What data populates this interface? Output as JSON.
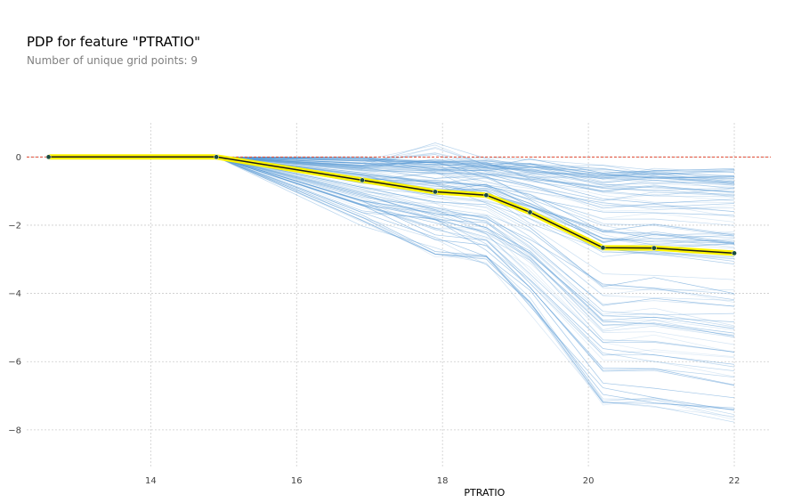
{
  "title": "PDP for feature \"PTRATIO\"",
  "subtitle": "Number of unique grid points: 9",
  "chart_data": {
    "type": "line",
    "title": "PDP for feature \"PTRATIO\"",
    "subtitle": "Number of unique grid points: 9",
    "xlabel": "PTRATIO",
    "ylabel": "",
    "xlim": [
      12.3,
      22.5
    ],
    "ylim": [
      -9.1,
      1.0
    ],
    "xticks": [
      14,
      16,
      18,
      20,
      22
    ],
    "yticks": [
      0,
      -2,
      -4,
      -6,
      -8
    ],
    "xtick_labels": [
      "14",
      "16",
      "18",
      "20",
      "22"
    ],
    "ytick_labels": [
      "0",
      "−2",
      "−4",
      "−6",
      "−8"
    ],
    "grid": true,
    "reference_line": 0,
    "series": [
      {
        "x": [
          12.6,
          14.9,
          16.9,
          17.9,
          18.6,
          19.2,
          20.2,
          20.9,
          22.0
        ],
        "values": [
          0.0,
          0.0,
          -0.68,
          -1.02,
          -1.12,
          -1.62,
          -2.66,
          -2.67,
          -2.82
        ]
      }
    ],
    "ice_lines_count": 120,
    "colors": {
      "pdp_line": "#1a1a1a",
      "pdp_band": "#fef400",
      "pdp_marker": "#1a4b3d",
      "ice_lines": "#5b9bd5",
      "reference_line": "#e24a33",
      "grid": "#cccccc"
    }
  }
}
